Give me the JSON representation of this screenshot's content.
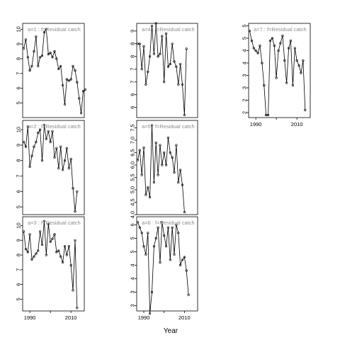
{
  "chart_data": {
    "type": "line",
    "layout": "3x3 faceted panels, column-major (a=1..3 first column, a=4..6 second, a=7 third)",
    "xlabel": "Year",
    "x_ticks": [
      1990,
      2010
    ],
    "series_style": "points joined by thin black line",
    "x_start": 1987,
    "panels": [
      {
        "label": "a=1 : f=Residual catch",
        "ylim": [
          4,
          10.4
        ],
        "y_ticks": [
          5,
          6,
          7,
          8,
          9,
          10
        ],
        "values": [
          8.7,
          9.3,
          8.1,
          7.2,
          7.5,
          8.5,
          9.5,
          7.5,
          8.1,
          8.2,
          9.8,
          10.0,
          8.3,
          8.4,
          8.1,
          8.5,
          8.0,
          7.3,
          7.5,
          6.2,
          4.9,
          6.6,
          6.5,
          6.6,
          7.5,
          7.2,
          6.4,
          5.3,
          4.3,
          5.8,
          5.9
        ]
      },
      {
        "label": "a=2 : f=Residual catch",
        "ylim": [
          4.5,
          10.6
        ],
        "y_ticks": [
          5,
          6,
          7,
          8,
          9,
          10
        ],
        "values": [
          9.2,
          8.9,
          10.2,
          7.6,
          8.3,
          8.9,
          9.2,
          9.8,
          10.0,
          8.0,
          10.3,
          9.4,
          9.9,
          9.2,
          9.9,
          8.2,
          8.8,
          7.5,
          8.9,
          7.4,
          8.0,
          8.8,
          7.5,
          8.1,
          6.2,
          4.7,
          6.0
        ]
      },
      {
        "label": "a=3 : f=Residual catch",
        "ylim": [
          4.2,
          10.6
        ],
        "y_ticks": [
          5,
          6,
          7,
          8,
          9,
          10
        ],
        "values": [
          9.6,
          8.4,
          8.2,
          9.4,
          7.7,
          7.9,
          8.1,
          8.3,
          9.6,
          8.7,
          10.3,
          8.0,
          10.1,
          8.9,
          9.1,
          9.4,
          8.2,
          8.3,
          7.9,
          7.5,
          8.6,
          8.0,
          8.6,
          7.3,
          5.6,
          9.0,
          4.4
        ]
      },
      {
        "label": "a=4 : f=Residual catch",
        "ylim": [
          5.1,
          8.8
        ],
        "y_ticks": [
          5.5,
          6.0,
          6.5,
          7.0,
          7.5,
          8.0,
          8.5
        ],
        "values": [
          8.0,
          8.0,
          7.0,
          7.9,
          6.4,
          6.9,
          7.5,
          8.7,
          7.6,
          8.8,
          7.5,
          7.6,
          8.3,
          6.5,
          8.4,
          7.1,
          7.2,
          8.0,
          7.3,
          7.1,
          6.4,
          7.2,
          6.4,
          5.2,
          7.8
        ]
      },
      {
        "label": "a=5 : f=Residual catch",
        "ylim": [
          4.0,
          7.8
        ],
        "y_ticks": [
          4.0,
          4.5,
          5.0,
          5.5,
          6.0,
          6.5,
          7.0,
          7.5
        ],
        "values": [
          6.2,
          6.6,
          5.6,
          6.7,
          4.8,
          5.1,
          4.7,
          7.6,
          5.3,
          6.9,
          5.6,
          6.8,
          6.0,
          6.5,
          6.0,
          7.1,
          6.5,
          6.3,
          5.7,
          6.8,
          5.3,
          5.8,
          5.2,
          4.1
        ]
      },
      {
        "label": "a=6 : f=Residual catch",
        "ylim": [
          2.3,
          5.8
        ],
        "y_ticks": [
          2.5,
          3.0,
          3.5,
          4.0,
          4.5,
          5.0,
          5.5
        ],
        "values": [
          5.6,
          5.4,
          5.2,
          4.7,
          4.4,
          5.2,
          2.2,
          3.0,
          4.7,
          5.0,
          5.4,
          4.1,
          5.6,
          5.1,
          4.7,
          5.4,
          4.2,
          5.4,
          4.4,
          5.5,
          5.2,
          4.0,
          4.2,
          4.3,
          3.8,
          2.9
        ]
      },
      {
        "label": "a=7 : f=Residual catch",
        "ylim": [
          1.3,
          5.1
        ],
        "y_ticks": [
          1.5,
          2.0,
          2.5,
          3.0,
          3.5,
          4.0,
          4.5,
          5.0
        ],
        "values": [
          4.8,
          4.4,
          4.1,
          4.0,
          3.9,
          4.2,
          3.5,
          2.6,
          1.4,
          1.4,
          4.4,
          4.5,
          4.2,
          2.9,
          4.0,
          4.3,
          4.6,
          3.6,
          2.7,
          4.1,
          4.4,
          2.6,
          4.1,
          3.6,
          3.4,
          3.1,
          3.6,
          1.6
        ]
      }
    ]
  }
}
